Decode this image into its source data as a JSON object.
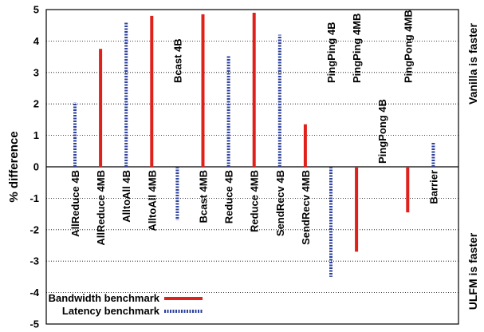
{
  "colors": {
    "bandwidth": "#e0201b",
    "latency": "#2b3f9e"
  },
  "chart_data": {
    "type": "bar",
    "ylabel": "% difference",
    "ylim": [
      -5,
      5
    ],
    "yticks": [
      5,
      4,
      3,
      2,
      1,
      0,
      -1,
      -2,
      -3,
      -4,
      -5
    ],
    "grid": true,
    "legend_position": "bottom-left",
    "right_top_label": "Vanilla is faster",
    "right_bottom_label": "ULFM is faster",
    "categories": [
      "AllReduce 4B",
      "AllReduce 4MB",
      "AlltoAll 4B",
      "AlltoAll 4MB",
      "Bcast 4B",
      "Bcast 4MB",
      "Reduce 4B",
      "Reduce 4MB",
      "SendRecv 4B",
      "SendRecv 4MB",
      "PingPing 4B",
      "PingPing 4MB",
      "PingPong 4B",
      "PingPong 4MB",
      "Barrier"
    ],
    "values": [
      2.05,
      3.75,
      4.6,
      4.8,
      -1.7,
      4.85,
      3.55,
      4.9,
      4.2,
      1.35,
      -3.5,
      -2.7,
      0,
      -1.45,
      0.8
    ],
    "bar_series": [
      "latency",
      "bandwidth",
      "latency",
      "bandwidth",
      "latency",
      "bandwidth",
      "latency",
      "bandwidth",
      "latency",
      "bandwidth",
      "latency",
      "bandwidth",
      "latency",
      "bandwidth",
      "latency"
    ],
    "series": [
      {
        "key": "bandwidth",
        "name": "Bandwidth benchmark",
        "style": "solid"
      },
      {
        "key": "latency",
        "name": "Latency benchmark",
        "style": "dotted"
      }
    ]
  }
}
